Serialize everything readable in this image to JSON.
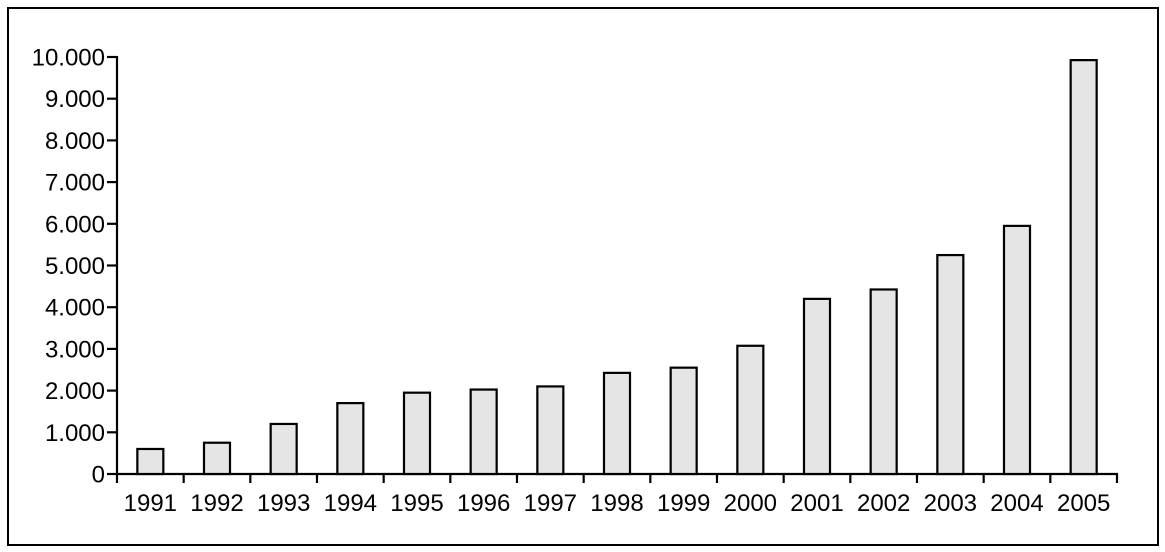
{
  "figure": {
    "background": "#ffffff",
    "frame_color": "#000000"
  },
  "chart_data": {
    "type": "bar",
    "title": "",
    "xlabel": "",
    "ylabel": "",
    "categories": [
      "1991",
      "1992",
      "1993",
      "1994",
      "1995",
      "1996",
      "1997",
      "1998",
      "1999",
      "2000",
      "2001",
      "2002",
      "2003",
      "2004",
      "2005"
    ],
    "values": [
      600,
      750,
      1200,
      1700,
      1950,
      2025,
      2100,
      2425,
      2550,
      3075,
      4200,
      4425,
      5250,
      5950,
      9925
    ],
    "ylim": [
      0,
      10000
    ],
    "y_tick_step": 1000,
    "y_tick_labels": [
      "0",
      "1.000",
      "2.000",
      "3.000",
      "4.000",
      "5.000",
      "6.000",
      "7.000",
      "8.000",
      "9.000",
      "10.000"
    ],
    "grid": false,
    "legend": null,
    "bar_fill": "#e5e5e5",
    "bar_stroke": "#000000",
    "axis_color": "#000000",
    "label_color": "#000000"
  }
}
